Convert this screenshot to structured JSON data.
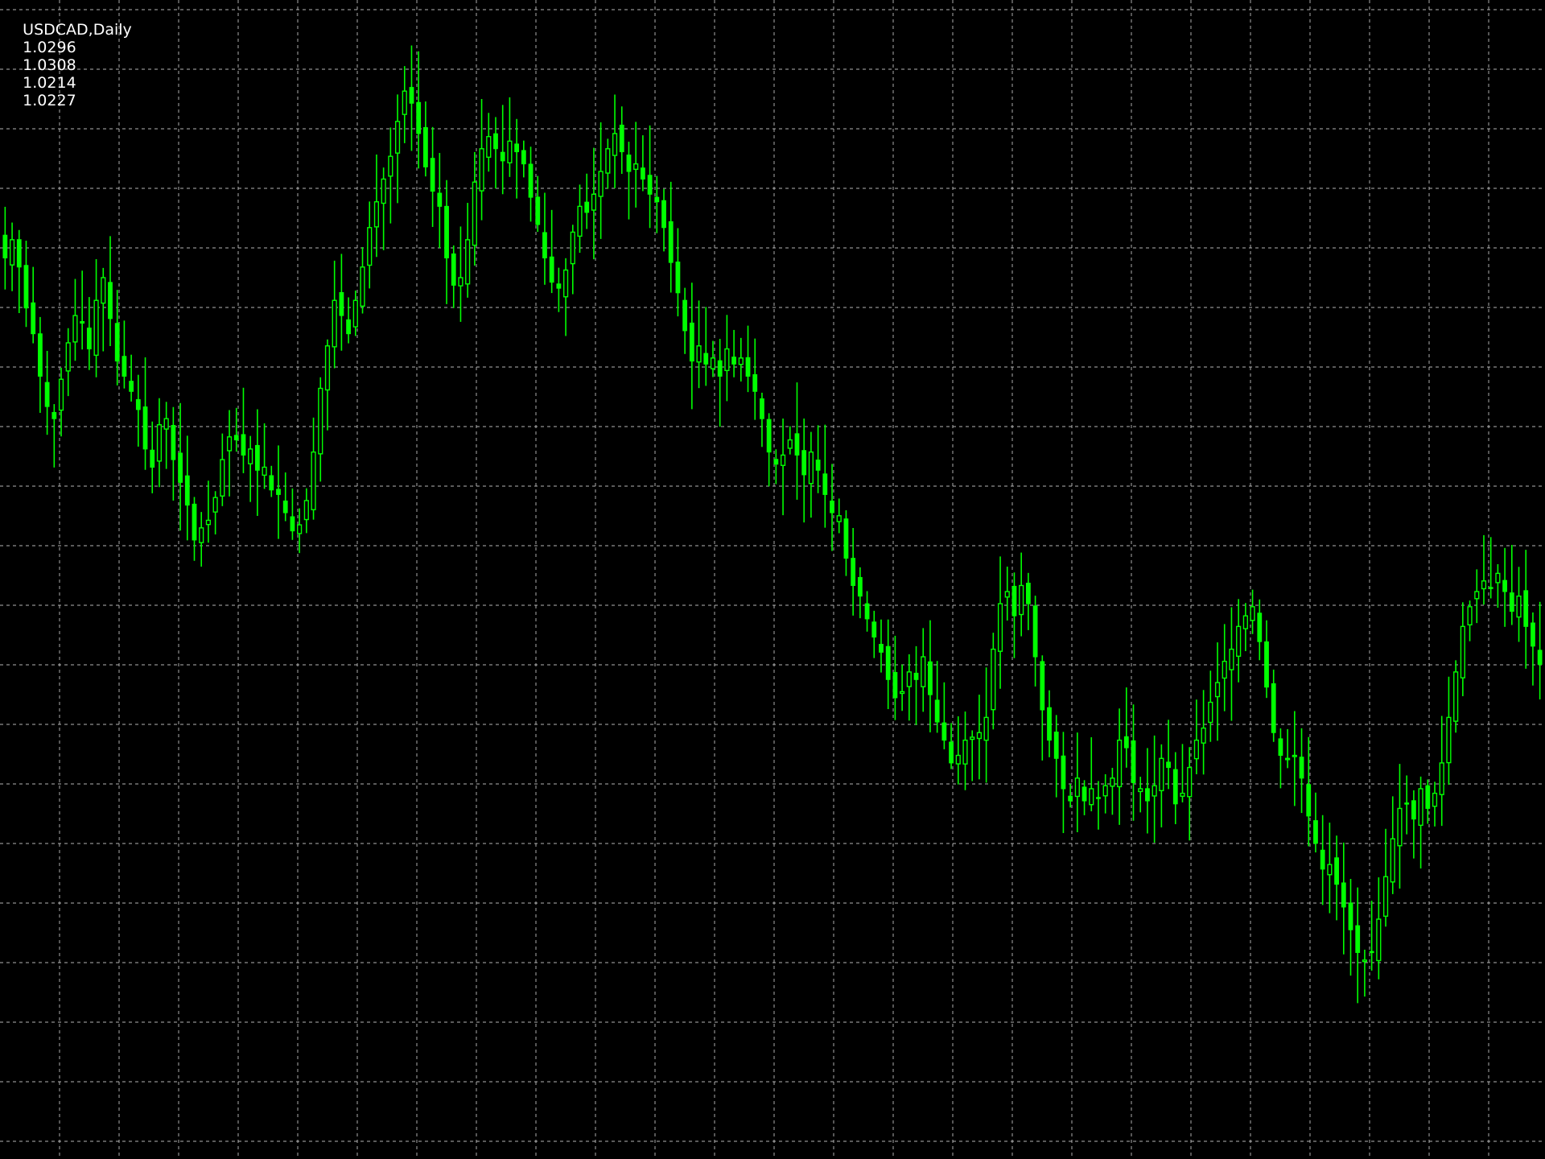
{
  "header": {
    "symbol": "USDCAD,Daily",
    "open": "1.0296",
    "high": "1.0308",
    "low": "1.0214",
    "close": "1.0227"
  },
  "colors": {
    "background": "#000000",
    "candle": "#00ff00",
    "grid": "#c0c0c0",
    "text": "#ffffff"
  },
  "chart_data": {
    "type": "candlestick",
    "grid": true,
    "grid_style": "dashed",
    "y_axis": "hidden",
    "x_axis": "hidden",
    "series": [
      {
        "values": [
          1.0228,
          1.024,
          1.0222,
          1.0195,
          1.0178,
          1.015,
          1.013,
          1.0122,
          1.0148,
          1.0172,
          1.019,
          1.0185,
          1.0168,
          1.02,
          1.0215,
          1.0188,
          1.016,
          1.015,
          1.014,
          1.0128,
          1.0102,
          1.009,
          1.0118,
          1.0122,
          1.0095,
          1.008,
          1.0065,
          1.0042,
          1.005,
          1.0055,
          1.007,
          1.0095,
          1.011,
          1.0108,
          1.0098,
          1.0102,
          1.0088,
          1.009,
          1.0075,
          1.0072,
          1.006,
          1.0048,
          1.0052,
          1.0068,
          1.01,
          1.0142,
          1.017,
          1.02,
          1.019,
          1.0178,
          1.02,
          1.0222,
          1.0248,
          1.0265,
          1.028,
          1.0295,
          1.0318,
          1.0338,
          1.033,
          1.031,
          1.0288,
          1.0272,
          1.0262,
          1.0228,
          1.021,
          1.0215,
          1.024,
          1.0278,
          1.03,
          1.0308,
          1.03,
          1.0292,
          1.0305,
          1.0298,
          1.029,
          1.0268,
          1.025,
          1.0228,
          1.0212,
          1.0208,
          1.022,
          1.0245,
          1.0262,
          1.0258,
          1.027,
          1.0285,
          1.03,
          1.031,
          1.0298,
          1.0285,
          1.029,
          1.028,
          1.027,
          1.0265,
          1.0248,
          1.0225,
          1.0205,
          1.018,
          1.016,
          1.017,
          1.0158,
          1.0162,
          1.015,
          1.0168,
          1.0158,
          1.0162,
          1.015,
          1.014,
          1.0122,
          1.01,
          1.0092,
          1.0098,
          1.0108,
          1.0098,
          1.0085,
          1.01,
          1.0088,
          1.0072,
          1.006,
          1.0058,
          1.003,
          1.0012,
          1.0005,
          0.999,
          0.9978,
          0.9968,
          0.995,
          0.9938,
          0.9942,
          0.9955,
          0.995,
          0.9965,
          0.994,
          0.9922,
          0.991,
          0.9895,
          0.99,
          0.991,
          0.9912,
          0.9915,
          0.9925,
          0.997,
          1.0,
          1.0008,
          0.9992,
          1.0012,
          1.0,
          0.9965,
          0.993,
          0.991,
          0.9898,
          0.9878,
          0.987,
          0.9885,
          0.987,
          0.9878,
          0.9872,
          0.988,
          0.9885,
          0.991,
          0.9905,
          0.9882,
          0.9878,
          0.987,
          0.988,
          0.9898,
          0.9892,
          0.9868,
          0.9875,
          0.9892,
          0.991,
          0.9918,
          0.9935,
          0.9948,
          0.9962,
          0.997,
          0.9985,
          0.9992,
          0.9998,
          0.9975,
          0.9945,
          0.9915,
          0.99,
          0.9898,
          0.99,
          0.9885,
          0.986,
          0.9842,
          0.9825,
          0.9828,
          0.9815,
          0.98,
          0.9785,
          0.977,
          0.9765,
          0.977,
          0.9792,
          0.982,
          0.9845,
          0.9865,
          0.9868,
          0.9858,
          0.9878,
          0.9865,
          0.9875,
          0.9895,
          0.9925,
          0.9955,
          0.9985,
          0.9998,
          1.0008,
          1.0015,
          1.001,
          1.002,
          1.0008,
          0.9995,
          1.0005,
          0.9985,
          0.9972,
          0.996
        ]
      }
    ]
  }
}
